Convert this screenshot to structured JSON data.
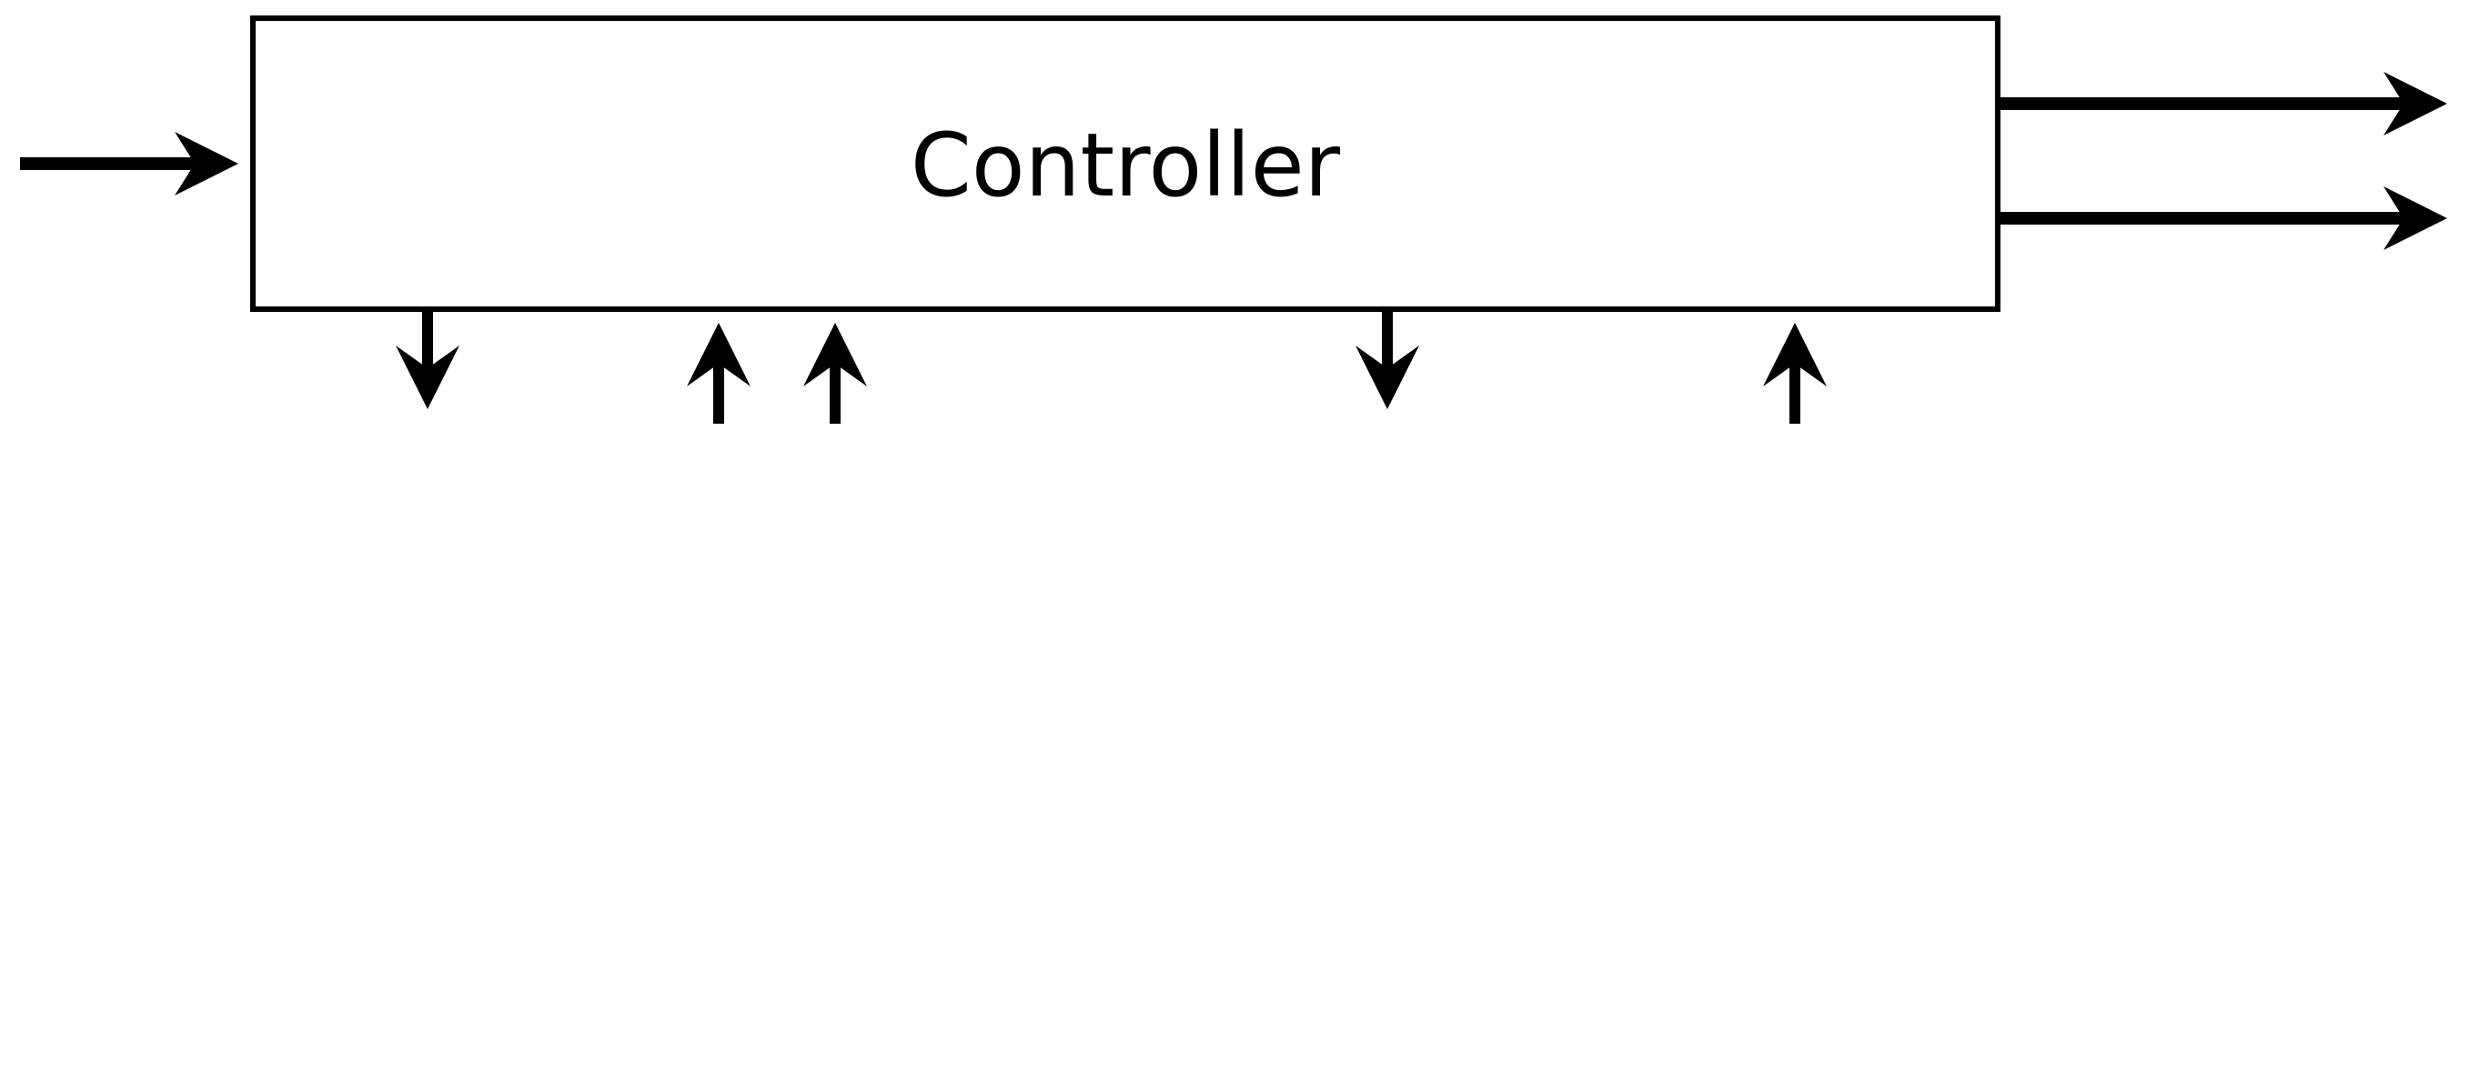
{
  "diagram": {
    "block": {
      "label": "Controller"
    },
    "colors": {
      "stroke": "#000000",
      "fill": "#ffffff",
      "background": "#ffffff"
    }
  }
}
